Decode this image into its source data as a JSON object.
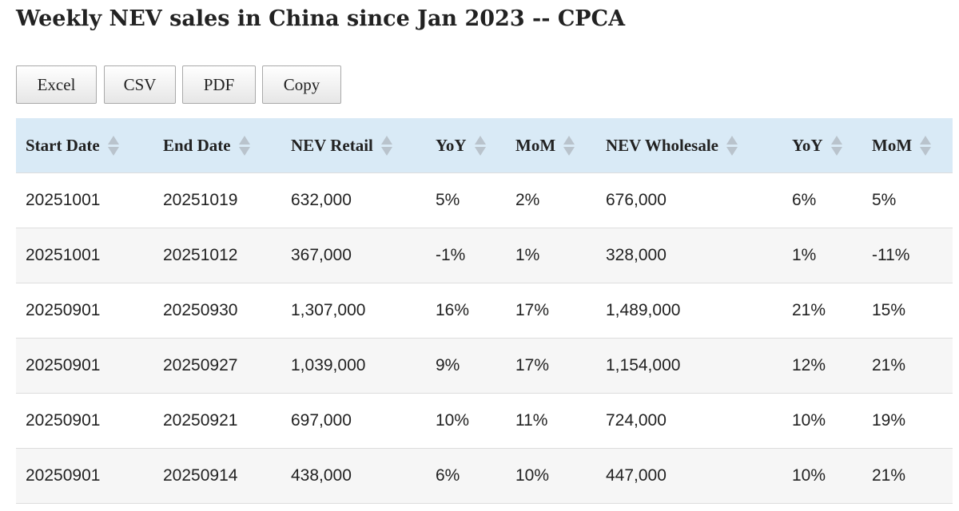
{
  "page": {
    "title": "Weekly NEV sales in China since Jan 2023 -- CPCA"
  },
  "toolbar": {
    "excel": "Excel",
    "csv": "CSV",
    "pdf": "PDF",
    "copy": "Copy"
  },
  "table": {
    "columns": [
      "Start Date",
      "End Date",
      "NEV Retail",
      "YoY",
      "MoM",
      "NEV Wholesale",
      "YoY",
      "MoM"
    ],
    "sort_icon": "sort-both-icon",
    "rows": [
      [
        "20251001",
        "20251019",
        "632,000",
        "5%",
        "2%",
        "676,000",
        "6%",
        "5%"
      ],
      [
        "20251001",
        "20251012",
        "367,000",
        "-1%",
        "1%",
        "328,000",
        "1%",
        "-11%"
      ],
      [
        "20250901",
        "20250930",
        "1,307,000",
        "16%",
        "17%",
        "1,489,000",
        "21%",
        "15%"
      ],
      [
        "20250901",
        "20250927",
        "1,039,000",
        "9%",
        "17%",
        "1,154,000",
        "12%",
        "21%"
      ],
      [
        "20250901",
        "20250921",
        "697,000",
        "10%",
        "11%",
        "724,000",
        "10%",
        "19%"
      ],
      [
        "20250901",
        "20250914",
        "438,000",
        "6%",
        "10%",
        "447,000",
        "10%",
        "21%"
      ]
    ]
  },
  "colors": {
    "header_bg": "#d9eaf6",
    "row_alt_bg": "#f6f6f6",
    "sort_icon": "#b9c3cc",
    "text": "#222222"
  }
}
